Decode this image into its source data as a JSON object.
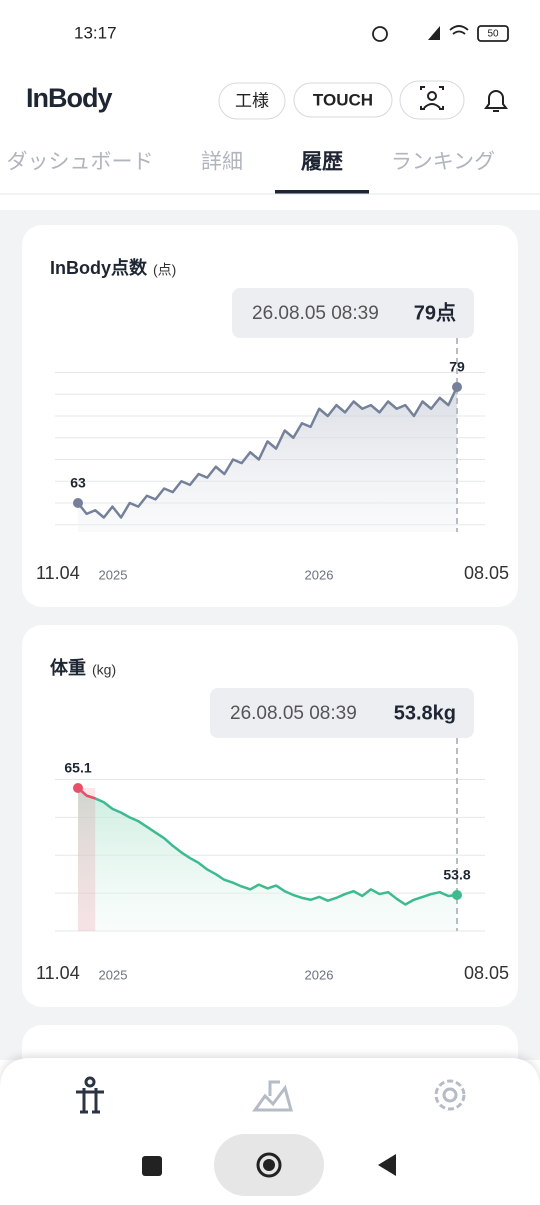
{
  "status_bar": {
    "time": "13:17",
    "battery": "50"
  },
  "header": {
    "logo": "InBody",
    "buttons": [
      "工様",
      "TOUCH"
    ]
  },
  "tabs": {
    "items": [
      "ダッシュボード",
      "詳細",
      "履歴",
      "ランキング"
    ],
    "active": 2
  },
  "chart_data": [
    {
      "type": "line",
      "title": "InBody点数",
      "unit": "(点)",
      "tooltip": {
        "datetime": "26.08.05 08:39",
        "label": "79点"
      },
      "x_start": "11.04",
      "x_end": "08.05",
      "year_labels": [
        "2025",
        "2026"
      ],
      "color": "#75819a",
      "values": [
        63,
        61.5,
        62,
        61,
        62.5,
        61,
        63,
        62.5,
        64,
        63.5,
        65,
        64.5,
        66,
        65.5,
        67,
        66.5,
        68,
        67,
        69,
        68.5,
        70,
        69,
        71.5,
        70.5,
        73,
        72,
        74,
        73.5,
        76,
        75,
        76.5,
        75.5,
        77,
        76,
        76.5,
        75.5,
        77,
        76,
        76.5,
        75,
        77,
        76,
        77.5,
        76.5,
        79
      ],
      "ylim": [
        59,
        81
      ],
      "yticks": [
        60,
        63,
        66,
        69,
        72,
        75,
        78,
        81
      ],
      "grid": true
    },
    {
      "type": "line",
      "title": "体重",
      "unit": "(kg)",
      "tooltip": {
        "datetime": "26.08.05 08:39",
        "label": "53.8kg"
      },
      "x_start": "11.04",
      "x_end": "08.05",
      "year_labels": [
        "2025",
        "2026"
      ],
      "color": "#3dbb8f",
      "start_color": "#e8506a",
      "values": [
        65.1,
        64.3,
        64,
        63.6,
        62.9,
        62.5,
        62,
        61.6,
        61,
        60.4,
        59.8,
        59,
        58.3,
        57.7,
        57.2,
        56.5,
        56,
        55.4,
        55.1,
        54.7,
        54.4,
        54.9,
        54.5,
        54.8,
        54.2,
        53.8,
        53.5,
        53.3,
        53.6,
        53.2,
        53.5,
        53.9,
        54.2,
        53.7,
        54.4,
        53.9,
        54.1,
        53.4,
        52.8,
        53.3,
        53.6,
        53.9,
        54.1,
        53.7,
        53.8
      ],
      "ylim": [
        50,
        66
      ],
      "yticks": [
        50,
        54,
        58,
        62,
        66
      ],
      "grid": true
    }
  ]
}
